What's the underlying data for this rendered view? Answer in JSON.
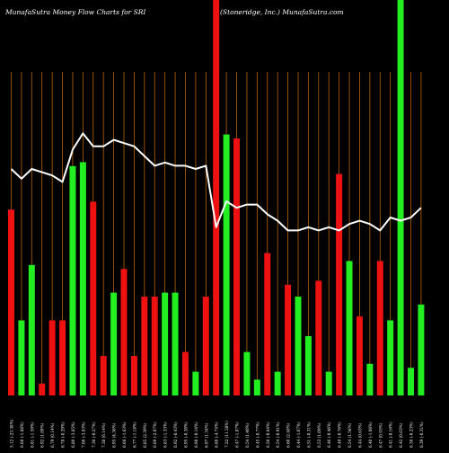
{
  "header": {
    "left_title": "MunafaSutra  Money Flow  Charts for SRI",
    "right_title": "(Stoneridge,  Inc.)  MunafaSutra.com"
  },
  "colors": {
    "background": "#000000",
    "gridline": "#b8640a",
    "up_bar": "#22ee22",
    "down_bar": "#ee1111",
    "price_line": "#ffffff",
    "text": "#ffffff"
  },
  "chart_data": {
    "type": "bar",
    "title": "MunafaSutra  Money Flow  Charts for SRI",
    "subtitle": "(Stoneridge,  Inc.)  MunafaSutra.com",
    "ylim": [
      0,
      1
    ],
    "categories": [
      "5.12 (-23.38%)",
      "6.68 (-1.88%)",
      "6.81 (-1.59%)",
      "6.92 (1.89%)",
      "6.79 (0.14%)",
      "6.78 (-0.29%)",
      "6.80 (-3.85%)",
      "7.08 (-3.83%)",
      "7.36 (-0.27%)",
      "7.38 (6.14%)",
      "6.95 (4.36%)",
      "6.66 (-1.63%)",
      "6.77 (-1.18%)",
      "6.85 (2.39%)",
      "6.69 (-2.07%)",
      "6.83 (-1.33%)",
      "6.92 (-0.43%)",
      "6.95 (-0.38%)",
      "6.98 (-0.14%)",
      "6.97 (1.34%)",
      "6.88 (-4.74%)",
      "7.22 (11.58%)",
      "6.47 (-1.07%)",
      "6.54 (1.40%)",
      "6.45 (-0.77%)",
      "6.50 (-0.64%)",
      "6.54 (-0.91%)",
      "6.60 (2.48%)",
      "6.44 (-1.07%)",
      "6.51 (-0.31%)",
      "6.53 (1.09%)",
      "6.46 (-0.46%)",
      "6.49 (-0.76%)",
      "6.54 (1.56%)",
      "6.44 (0.63%)",
      "6.40 (-1.08%)",
      "6.47 (0.93%)",
      "6.41 (-0.16%)",
      "6.42 (0.63%)",
      "6.38 (-0.23%)",
      "6.39 (-0.31%)"
    ],
    "series": [
      {
        "values": [
          "down",
          "up",
          "up",
          "down",
          "down",
          "down",
          "up",
          "up",
          "down",
          "down",
          "up",
          "down",
          "down",
          "down",
          "down",
          "up",
          "up",
          "down",
          "up",
          "down",
          "down",
          "up",
          "down",
          "up",
          "up",
          "down",
          "up",
          "down",
          "up",
          "up",
          "down",
          "up",
          "down",
          "up",
          "down",
          "up",
          "down",
          "up",
          "up",
          "up",
          "up"
        ]
      },
      {
        "values": [
          0.47,
          0.19,
          0.33,
          0.03,
          0.19,
          0.19,
          0.58,
          0.59,
          0.49,
          0.1,
          0.26,
          0.32,
          0.1,
          0.25,
          0.25,
          0.26,
          0.26,
          0.11,
          0.06,
          0.25,
          1.0,
          0.66,
          0.65,
          0.11,
          0.04,
          0.36,
          0.06,
          0.28,
          0.25,
          0.15,
          0.29,
          0.06,
          0.56,
          0.34,
          0.2,
          0.08,
          0.34,
          0.19,
          1.0,
          0.07,
          0.23
        ]
      },
      {
        "values": [
          0.7,
          0.67,
          0.7,
          0.69,
          0.68,
          0.66,
          0.76,
          0.81,
          0.77,
          0.77,
          0.79,
          0.78,
          0.77,
          0.74,
          0.71,
          0.72,
          0.71,
          0.71,
          0.7,
          0.71,
          0.52,
          0.6,
          0.58,
          0.59,
          0.59,
          0.56,
          0.54,
          0.51,
          0.51,
          0.52,
          0.51,
          0.52,
          0.51,
          0.53,
          0.54,
          0.53,
          0.51,
          0.55,
          0.54,
          0.55,
          0.58
        ]
      }
    ]
  }
}
